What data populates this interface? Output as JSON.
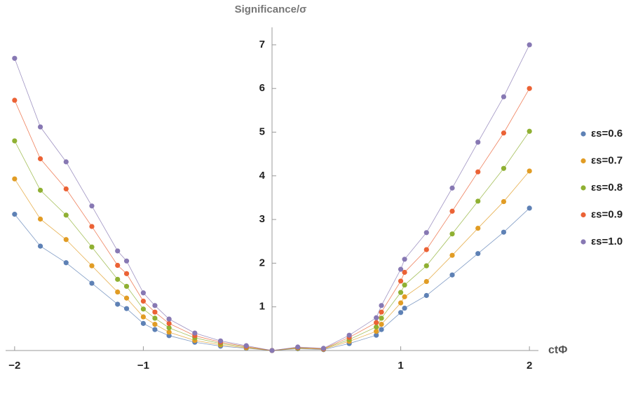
{
  "chart_data": {
    "type": "line",
    "title": "Significance/σ",
    "x_label": "ctΦ",
    "x": [
      -2,
      -1.8,
      -1.6,
      -1.4,
      -1.2,
      -1.13,
      -1,
      -0.91,
      -0.8,
      -0.6,
      -0.4,
      -0.2,
      0,
      0.2,
      0.4,
      0.6,
      0.81,
      0.85,
      1,
      1.03,
      1.2,
      1.4,
      1.6,
      1.8,
      2
    ],
    "series": [
      {
        "name": "εs=0.6",
        "color": "#5e81b5",
        "values": [
          3.12,
          2.39,
          2.01,
          1.54,
          1.06,
          0.96,
          0.62,
          0.48,
          0.34,
          0.19,
          0.1,
          0.05,
          0,
          0.04,
          0.02,
          0.16,
          0.35,
          0.48,
          0.87,
          0.97,
          1.26,
          1.73,
          2.22,
          2.71,
          3.26
        ]
      },
      {
        "name": "εs=0.7",
        "color": "#e19c24",
        "values": [
          3.93,
          3.01,
          2.54,
          1.94,
          1.34,
          1.2,
          0.77,
          0.6,
          0.42,
          0.23,
          0.13,
          0.06,
          0,
          0.05,
          0.03,
          0.21,
          0.44,
          0.6,
          1.09,
          1.23,
          1.58,
          2.18,
          2.8,
          3.41,
          4.11
        ]
      },
      {
        "name": "εs=0.8",
        "color": "#8fb032",
        "values": [
          4.8,
          3.67,
          3.1,
          2.37,
          1.63,
          1.47,
          0.95,
          0.74,
          0.52,
          0.29,
          0.16,
          0.08,
          0,
          0.06,
          0.04,
          0.25,
          0.54,
          0.74,
          1.33,
          1.5,
          1.94,
          2.67,
          3.42,
          4.17,
          5.02
        ]
      },
      {
        "name": "εs=0.9",
        "color": "#eb6235",
        "values": [
          5.73,
          4.39,
          3.7,
          2.84,
          1.95,
          1.76,
          1.13,
          0.88,
          0.62,
          0.34,
          0.19,
          0.09,
          0,
          0.07,
          0.04,
          0.3,
          0.64,
          0.88,
          1.59,
          1.79,
          2.31,
          3.19,
          4.09,
          4.98,
          6.0
        ]
      },
      {
        "name": "εs=1.0",
        "color": "#8778b3",
        "values": [
          6.69,
          5.12,
          4.32,
          3.31,
          2.28,
          2.05,
          1.32,
          1.03,
          0.72,
          0.4,
          0.22,
          0.11,
          0,
          0.08,
          0.05,
          0.35,
          0.75,
          1.03,
          1.86,
          2.09,
          2.7,
          3.72,
          4.77,
          5.81,
          7.0
        ]
      }
    ],
    "xlim": [
      -2.07,
      2.07
    ],
    "ylim": [
      0,
      7.4
    ],
    "xticks": [
      {
        "value": -2,
        "label": "−2"
      },
      {
        "value": -1,
        "label": "−1"
      },
      1,
      2
    ],
    "yticks": [
      1,
      2,
      3,
      4,
      5,
      6,
      7
    ],
    "legend": "right"
  }
}
